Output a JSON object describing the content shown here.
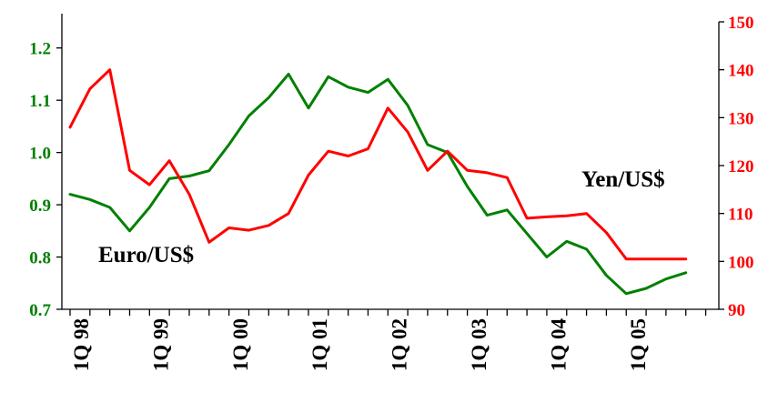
{
  "chart_data": {
    "type": "line",
    "x_tick_labels": [
      "1Q 98",
      "1Q 99",
      "1Q 00",
      "1Q 01",
      "1Q 02",
      "1Q 03",
      "1Q 04",
      "1Q 05"
    ],
    "y_left": {
      "ticks": [
        "0.7",
        "0.8",
        "0.9",
        "1.0",
        "1.1",
        "1.2"
      ],
      "range": [
        0.7,
        1.25
      ]
    },
    "y_right": {
      "ticks": [
        "90",
        "100",
        "110",
        "120",
        "130",
        "140",
        "150"
      ],
      "range": [
        90,
        150
      ]
    },
    "series": [
      {
        "name": "Euro/US$",
        "axis": "left",
        "color": "#008000",
        "values": [
          0.92,
          0.91,
          0.895,
          0.85,
          0.895,
          0.95,
          0.955,
          0.965,
          1.015,
          1.07,
          1.105,
          1.15,
          1.085,
          1.145,
          1.125,
          1.115,
          1.14,
          1.09,
          1.015,
          1.0,
          0.935,
          0.88,
          0.89,
          0.845,
          0.8,
          0.83,
          0.815,
          0.765,
          0.73,
          0.74,
          0.758,
          0.77
        ]
      },
      {
        "name": "Yen/US$",
        "axis": "right",
        "color": "#ff0000",
        "values": [
          128,
          136,
          140,
          119,
          116,
          121,
          114,
          104,
          107,
          106.5,
          107.5,
          110,
          118,
          123,
          122,
          123.5,
          132,
          127,
          119,
          123,
          119,
          118.5,
          117.5,
          109,
          109.3,
          109.5,
          110,
          106,
          100.5,
          100.5,
          100.5,
          100.5
        ]
      }
    ]
  }
}
